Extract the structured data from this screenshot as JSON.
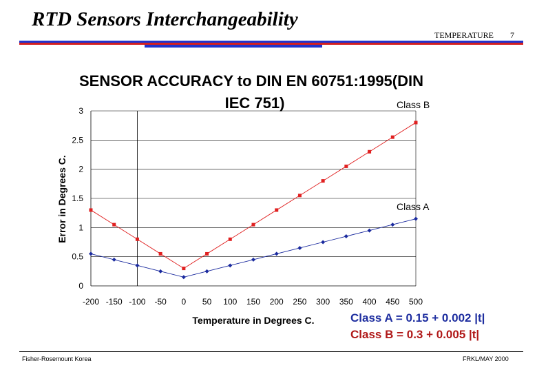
{
  "header": {
    "title": "RTD Sensors Interchangeability",
    "topic": "TEMPERATURE",
    "page_number": "7",
    "colors": {
      "band_blue": "#2233cc",
      "band_red": "#d42020"
    }
  },
  "footer": {
    "left": "Fisher-Rosemount Korea",
    "right": "FRKL/MAY 2000"
  },
  "formulas": {
    "class_a": "Class A = 0.15 + 0.002 |t|",
    "class_b": "Class B = 0.3 + 0.005 |t|"
  },
  "chart_data": {
    "type": "line",
    "title_line1": "SENSOR ACCURACY to DIN EN 60751:1995(DIN",
    "title_line2": "IEC 751)",
    "xlabel": "Temperature in Degrees C.",
    "ylabel": "Error in Degrees C.",
    "x": [
      -200,
      -150,
      -100,
      -50,
      0,
      50,
      100,
      150,
      200,
      250,
      300,
      350,
      400,
      450,
      500
    ],
    "x_tick_labels": [
      "-200",
      "-150",
      "-100",
      "-50",
      "0",
      "50",
      "100",
      "150",
      "200",
      "250",
      "300",
      "350",
      "400",
      "450",
      "500"
    ],
    "y_ticks": [
      0,
      0.5,
      1,
      1.5,
      2,
      2.5,
      3
    ],
    "y_tick_labels": [
      "0",
      "0.5",
      "1",
      "1.5",
      "2",
      "2.5",
      "3"
    ],
    "xlim": [
      -200,
      500
    ],
    "ylim": [
      0,
      3
    ],
    "grid": "horizontal",
    "reference_line_x": -100,
    "series": [
      {
        "name": "Class B",
        "color": "#e02020",
        "values": [
          1.3,
          1.05,
          0.8,
          0.55,
          0.3,
          0.55,
          0.8,
          1.05,
          1.3,
          1.55,
          1.8,
          2.05,
          2.3,
          2.55,
          2.8
        ]
      },
      {
        "name": "Class A",
        "color": "#1a2a9e",
        "values": [
          0.55,
          0.45,
          0.35,
          0.25,
          0.15,
          0.25,
          0.35,
          0.45,
          0.55,
          0.65,
          0.75,
          0.85,
          0.95,
          1.05,
          1.15
        ]
      }
    ]
  }
}
